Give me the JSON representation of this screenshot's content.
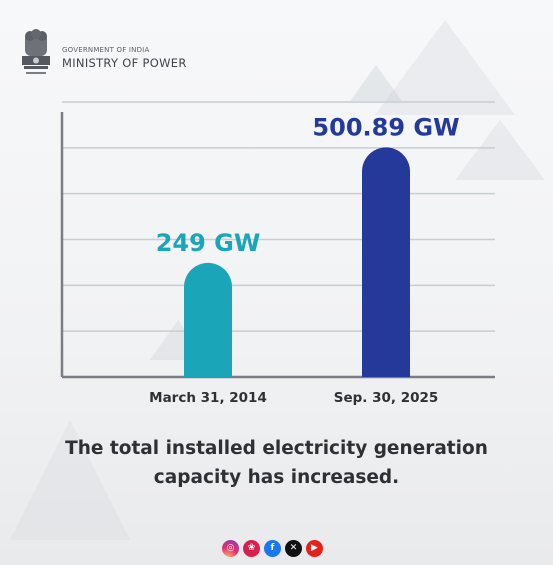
{
  "header": {
    "government_label": "GOVERNMENT OF INDIA",
    "ministry_label": "MINISTRY OF POWER"
  },
  "caption": {
    "line1": "The total installed electricity generation",
    "line2": "capacity has increased."
  },
  "colors": {
    "bar_2014": "#1aa5b8",
    "bar_2025": "#24399a",
    "label_2014": "#1aa5b8",
    "label_2025": "#24399a",
    "axis": "#7a7e84",
    "grid": "#c9ccd1"
  },
  "social_icons": [
    "instagram-icon",
    "koo-icon",
    "facebook-icon",
    "x-icon",
    "youtube-icon"
  ],
  "chart_data": {
    "type": "bar",
    "categories": [
      "March 31, 2014",
      "Sep. 30, 2025"
    ],
    "values": [
      249,
      500.89
    ],
    "data_labels": [
      "249 GW",
      "500.89 GW"
    ],
    "title": "",
    "xlabel": "",
    "ylabel": "",
    "ylim": [
      0,
      600
    ],
    "grid": true,
    "legend": "none"
  }
}
